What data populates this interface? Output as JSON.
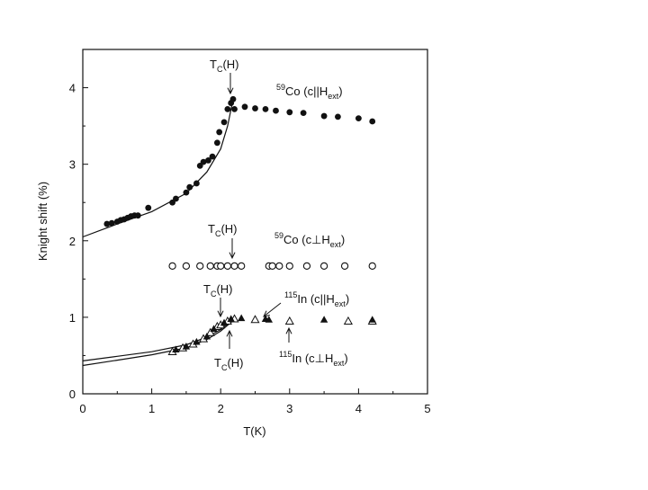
{
  "chart_data": {
    "type": "scatter",
    "xlabel": "T(K)",
    "ylabel": "Knight shift (%)",
    "xlim": [
      0,
      5
    ],
    "ylim": [
      0,
      4.5
    ],
    "xticks": [
      "0",
      "1",
      "2",
      "3",
      "4",
      "5"
    ],
    "yticks": [
      "0",
      "1",
      "2",
      "3",
      "4"
    ],
    "grid": false,
    "legend": "none",
    "series": [
      {
        "marker": "filled-circle",
        "points": [
          [
            0.35,
            2.22
          ],
          [
            0.42,
            2.23
          ],
          [
            0.5,
            2.25
          ],
          [
            0.55,
            2.27
          ],
          [
            0.6,
            2.28
          ],
          [
            0.65,
            2.3
          ],
          [
            0.7,
            2.32
          ],
          [
            0.75,
            2.33
          ],
          [
            0.8,
            2.33
          ],
          [
            0.95,
            2.43
          ],
          [
            1.3,
            2.5
          ],
          [
            1.35,
            2.55
          ],
          [
            1.5,
            2.63
          ],
          [
            1.55,
            2.7
          ],
          [
            1.65,
            2.75
          ],
          [
            1.7,
            2.98
          ],
          [
            1.75,
            3.03
          ],
          [
            1.82,
            3.05
          ],
          [
            1.88,
            3.1
          ],
          [
            1.95,
            3.28
          ],
          [
            1.98,
            3.42
          ],
          [
            2.05,
            3.55
          ],
          [
            2.1,
            3.72
          ],
          [
            2.15,
            3.8
          ],
          [
            2.18,
            3.85
          ],
          [
            2.2,
            3.72
          ],
          [
            2.35,
            3.75
          ],
          [
            2.5,
            3.73
          ],
          [
            2.65,
            3.72
          ],
          [
            2.8,
            3.7
          ],
          [
            3.0,
            3.68
          ],
          [
            3.2,
            3.67
          ],
          [
            3.5,
            3.63
          ],
          [
            3.7,
            3.62
          ],
          [
            4.0,
            3.6
          ],
          [
            4.2,
            3.56
          ]
        ]
      },
      {
        "marker": "open-circle",
        "points": [
          [
            1.3,
            1.67
          ],
          [
            1.5,
            1.67
          ],
          [
            1.7,
            1.67
          ],
          [
            1.85,
            1.67
          ],
          [
            1.95,
            1.67
          ],
          [
            2.0,
            1.67
          ],
          [
            2.1,
            1.67
          ],
          [
            2.2,
            1.67
          ],
          [
            2.3,
            1.67
          ],
          [
            2.7,
            1.67
          ],
          [
            2.75,
            1.67
          ],
          [
            2.85,
            1.67
          ],
          [
            3.0,
            1.67
          ],
          [
            3.25,
            1.67
          ],
          [
            3.5,
            1.67
          ],
          [
            3.8,
            1.67
          ],
          [
            4.2,
            1.67
          ]
        ]
      },
      {
        "marker": "open-triangle",
        "points": [
          [
            1.3,
            0.55
          ],
          [
            1.45,
            0.6
          ],
          [
            1.6,
            0.65
          ],
          [
            1.75,
            0.72
          ],
          [
            1.85,
            0.8
          ],
          [
            1.95,
            0.88
          ],
          [
            2.0,
            0.9
          ],
          [
            2.1,
            0.95
          ],
          [
            2.2,
            0.98
          ],
          [
            2.5,
            0.97
          ],
          [
            3.0,
            0.95
          ],
          [
            3.85,
            0.95
          ],
          [
            4.2,
            0.95
          ]
        ]
      },
      {
        "marker": "filled-triangle",
        "points": [
          [
            1.35,
            0.58
          ],
          [
            1.5,
            0.62
          ],
          [
            1.65,
            0.68
          ],
          [
            1.8,
            0.75
          ],
          [
            1.9,
            0.85
          ],
          [
            2.05,
            0.93
          ],
          [
            2.15,
            0.98
          ],
          [
            2.3,
            0.99
          ],
          [
            2.65,
            0.98
          ],
          [
            2.7,
            0.97
          ],
          [
            3.5,
            0.97
          ],
          [
            4.2,
            0.97
          ]
        ]
      }
    ],
    "fits": [
      {
        "x": [
          0,
          0.5,
          1.0,
          1.5,
          1.8,
          2.0,
          2.1,
          2.18
        ],
        "y": [
          2.05,
          2.22,
          2.38,
          2.62,
          2.9,
          3.2,
          3.5,
          3.85
        ]
      },
      {
        "x": [
          0,
          0.5,
          1.0,
          1.5,
          1.8,
          2.0,
          2.2
        ],
        "y": [
          0.43,
          0.49,
          0.55,
          0.64,
          0.74,
          0.84,
          0.99
        ]
      },
      {
        "x": [
          0,
          0.5,
          1.0,
          1.5,
          1.8,
          2.0,
          2.2
        ],
        "y": [
          0.37,
          0.44,
          0.51,
          0.6,
          0.71,
          0.82,
          0.97
        ]
      }
    ],
    "annotations": {
      "tc_co_par": {
        "main": "T",
        "sub": "C",
        "tail": "(H)"
      },
      "co_par": {
        "sup": "59",
        "main": "Co (c||H",
        "sub": "ext",
        "tail": ")"
      },
      "tc_co_perp": {
        "main": "T",
        "sub": "C",
        "tail": "(H)"
      },
      "co_perp": {
        "sup": "59",
        "main": "Co (c⊥H",
        "sub": "ext",
        "tail": ")"
      },
      "tc_in_upper": {
        "main": "T",
        "sub": "C",
        "tail": "(H)"
      },
      "in_par": {
        "sup": "115",
        "main": "In (c||H",
        "sub": "ext",
        "tail": ")"
      },
      "in_perp": {
        "sup": "115",
        "main": "In (c⊥H",
        "sub": "ext",
        "tail": ")"
      },
      "tc_in_lower": {
        "main": "T",
        "sub": "C",
        "tail": "(H)"
      }
    }
  }
}
